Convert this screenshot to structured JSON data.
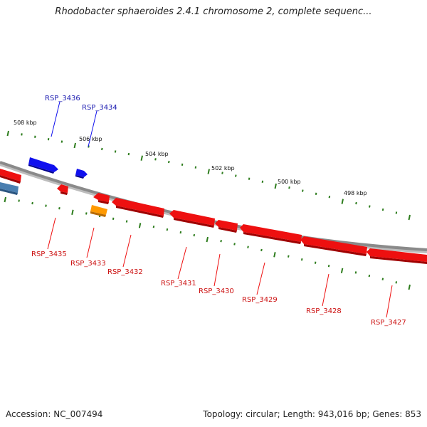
{
  "title": "Rhodobacter sphaeroides 2.4.1 chromosome 2, complete sequenc...",
  "accession_text": "Accession: NC_007494",
  "summary_text": "Topology: circular; Length: 943,016 bp; Genes: 853",
  "colors": {
    "backbone": "#8a8a8a",
    "tick": "#2e7d1e",
    "forward_gene": "#1010ee",
    "reverse_gene": "#ee1010",
    "other_gene_orange": "#ff9900",
    "other_gene_steel": "#4a7fb0",
    "forward_label": "#1a1ab0",
    "reverse_label": "#cc1010"
  },
  "tick_labels": [
    "508 kbp",
    "506 kbp",
    "504 kbp",
    "502 kbp",
    "500 kbp",
    "498 kbp"
  ],
  "genes": [
    {
      "label": "RSP_3436",
      "strand": "forward"
    },
    {
      "label": "RSP_3434",
      "strand": "forward"
    },
    {
      "label": "RSP_3435",
      "strand": "reverse"
    },
    {
      "label": "RSP_3433",
      "strand": "reverse"
    },
    {
      "label": "RSP_3432",
      "strand": "reverse"
    },
    {
      "label": "RSP_3431",
      "strand": "reverse"
    },
    {
      "label": "RSP_3430",
      "strand": "reverse"
    },
    {
      "label": "RSP_3429",
      "strand": "reverse"
    },
    {
      "label": "RSP_3428",
      "strand": "reverse"
    },
    {
      "label": "RSP_3427",
      "strand": "reverse"
    }
  ]
}
